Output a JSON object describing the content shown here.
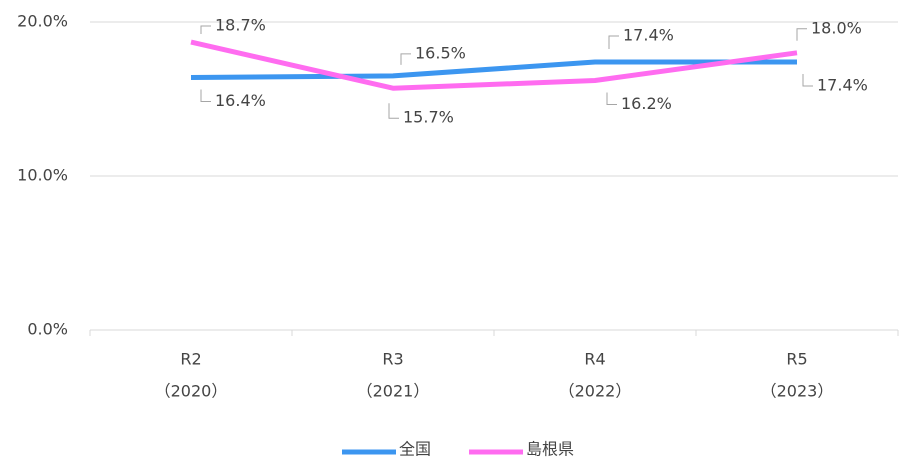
{
  "chart_data": {
    "type": "line",
    "categories": [
      [
        "R2",
        "（2020）"
      ],
      [
        "R3",
        "（2021）"
      ],
      [
        "R4",
        "（2022）"
      ],
      [
        "R5",
        "（2023）"
      ]
    ],
    "series": [
      {
        "name": "全国",
        "color": "#3c96f0",
        "values": [
          16.4,
          16.5,
          17.4,
          17.4
        ],
        "value_labels": [
          "16.4%",
          "16.5%",
          "17.4%",
          "17.4%"
        ]
      },
      {
        "name": "島根県",
        "color": "#ff6cf0",
        "values": [
          18.7,
          15.7,
          16.2,
          18.0
        ],
        "value_labels": [
          "18.7%",
          "15.7%",
          "16.2%",
          "18.0%"
        ]
      }
    ],
    "ylim": [
      0,
      20
    ],
    "yticks": [
      {
        "value": 0,
        "label": "0.0%"
      },
      {
        "value": 10,
        "label": "10.0%"
      },
      {
        "value": 20,
        "label": "20.0%"
      }
    ],
    "grid": true,
    "legend": "bottom"
  }
}
